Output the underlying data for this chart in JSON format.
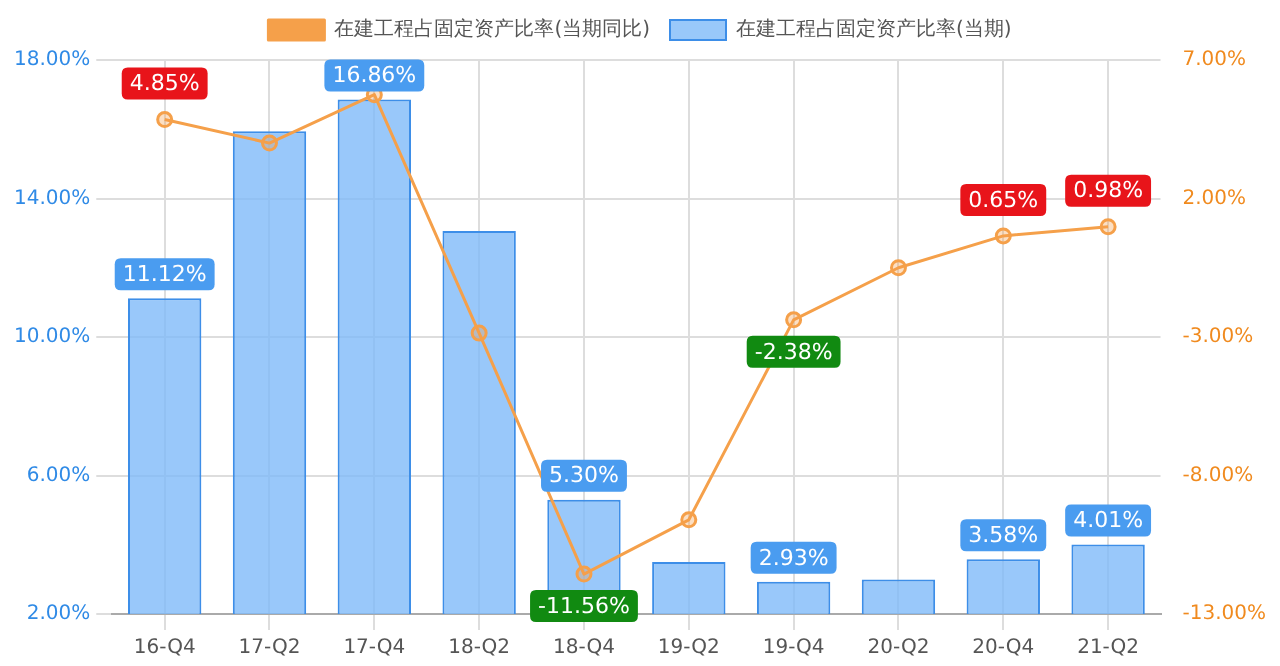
{
  "chart_data": {
    "type": "bar",
    "categories": [
      "16-Q4",
      "17-Q2",
      "17-Q4",
      "18-Q2",
      "18-Q4",
      "19-Q2",
      "19-Q4",
      "20-Q2",
      "20-Q4",
      "21-Q2"
    ],
    "series": [
      {
        "name": "在建工程占固定资产比率(当期)",
        "color": "#7fbaf9",
        "values": [
          11.12,
          15.94,
          16.86,
          13.06,
          5.3,
          3.5,
          2.93,
          3.0,
          3.58,
          4.01
        ],
        "value_labels": [
          "11.12%",
          null,
          "16.86%",
          null,
          "5.30%",
          null,
          "2.93%",
          null,
          "3.58%",
          "4.01%"
        ]
      },
      {
        "name": "在建工程占固定资产比率(当期同比)",
        "type": "line",
        "axis": "y2",
        "color": "#f5a04a",
        "values": [
          4.85,
          4.0,
          5.75,
          -2.86,
          -11.56,
          -9.6,
          -2.38,
          -0.5,
          0.65,
          0.98
        ],
        "value_labels": [
          "4.85%",
          null,
          null,
          null,
          "-11.56%",
          null,
          "-2.38%",
          null,
          "0.65%",
          "0.98%"
        ]
      }
    ],
    "ylim": [
      2,
      18
    ],
    "yticks": [
      {
        "value": 2,
        "label": "2.00%"
      },
      {
        "value": 6,
        "label": "6.00%"
      },
      {
        "value": 10,
        "label": "10.00%"
      },
      {
        "value": 14,
        "label": "14.00%"
      },
      {
        "value": 18,
        "label": "18.00%"
      }
    ],
    "y2lim": [
      -13,
      7
    ],
    "y2ticks": [
      {
        "value": -13,
        "label": "-13.00%"
      },
      {
        "value": -8,
        "label": "-8.00%"
      },
      {
        "value": -3,
        "label": "-3.00%"
      },
      {
        "value": 2,
        "label": "2.00%"
      },
      {
        "value": 7,
        "label": "7.00%"
      }
    ],
    "grid": true,
    "legend": "top",
    "marker": "circle"
  }
}
